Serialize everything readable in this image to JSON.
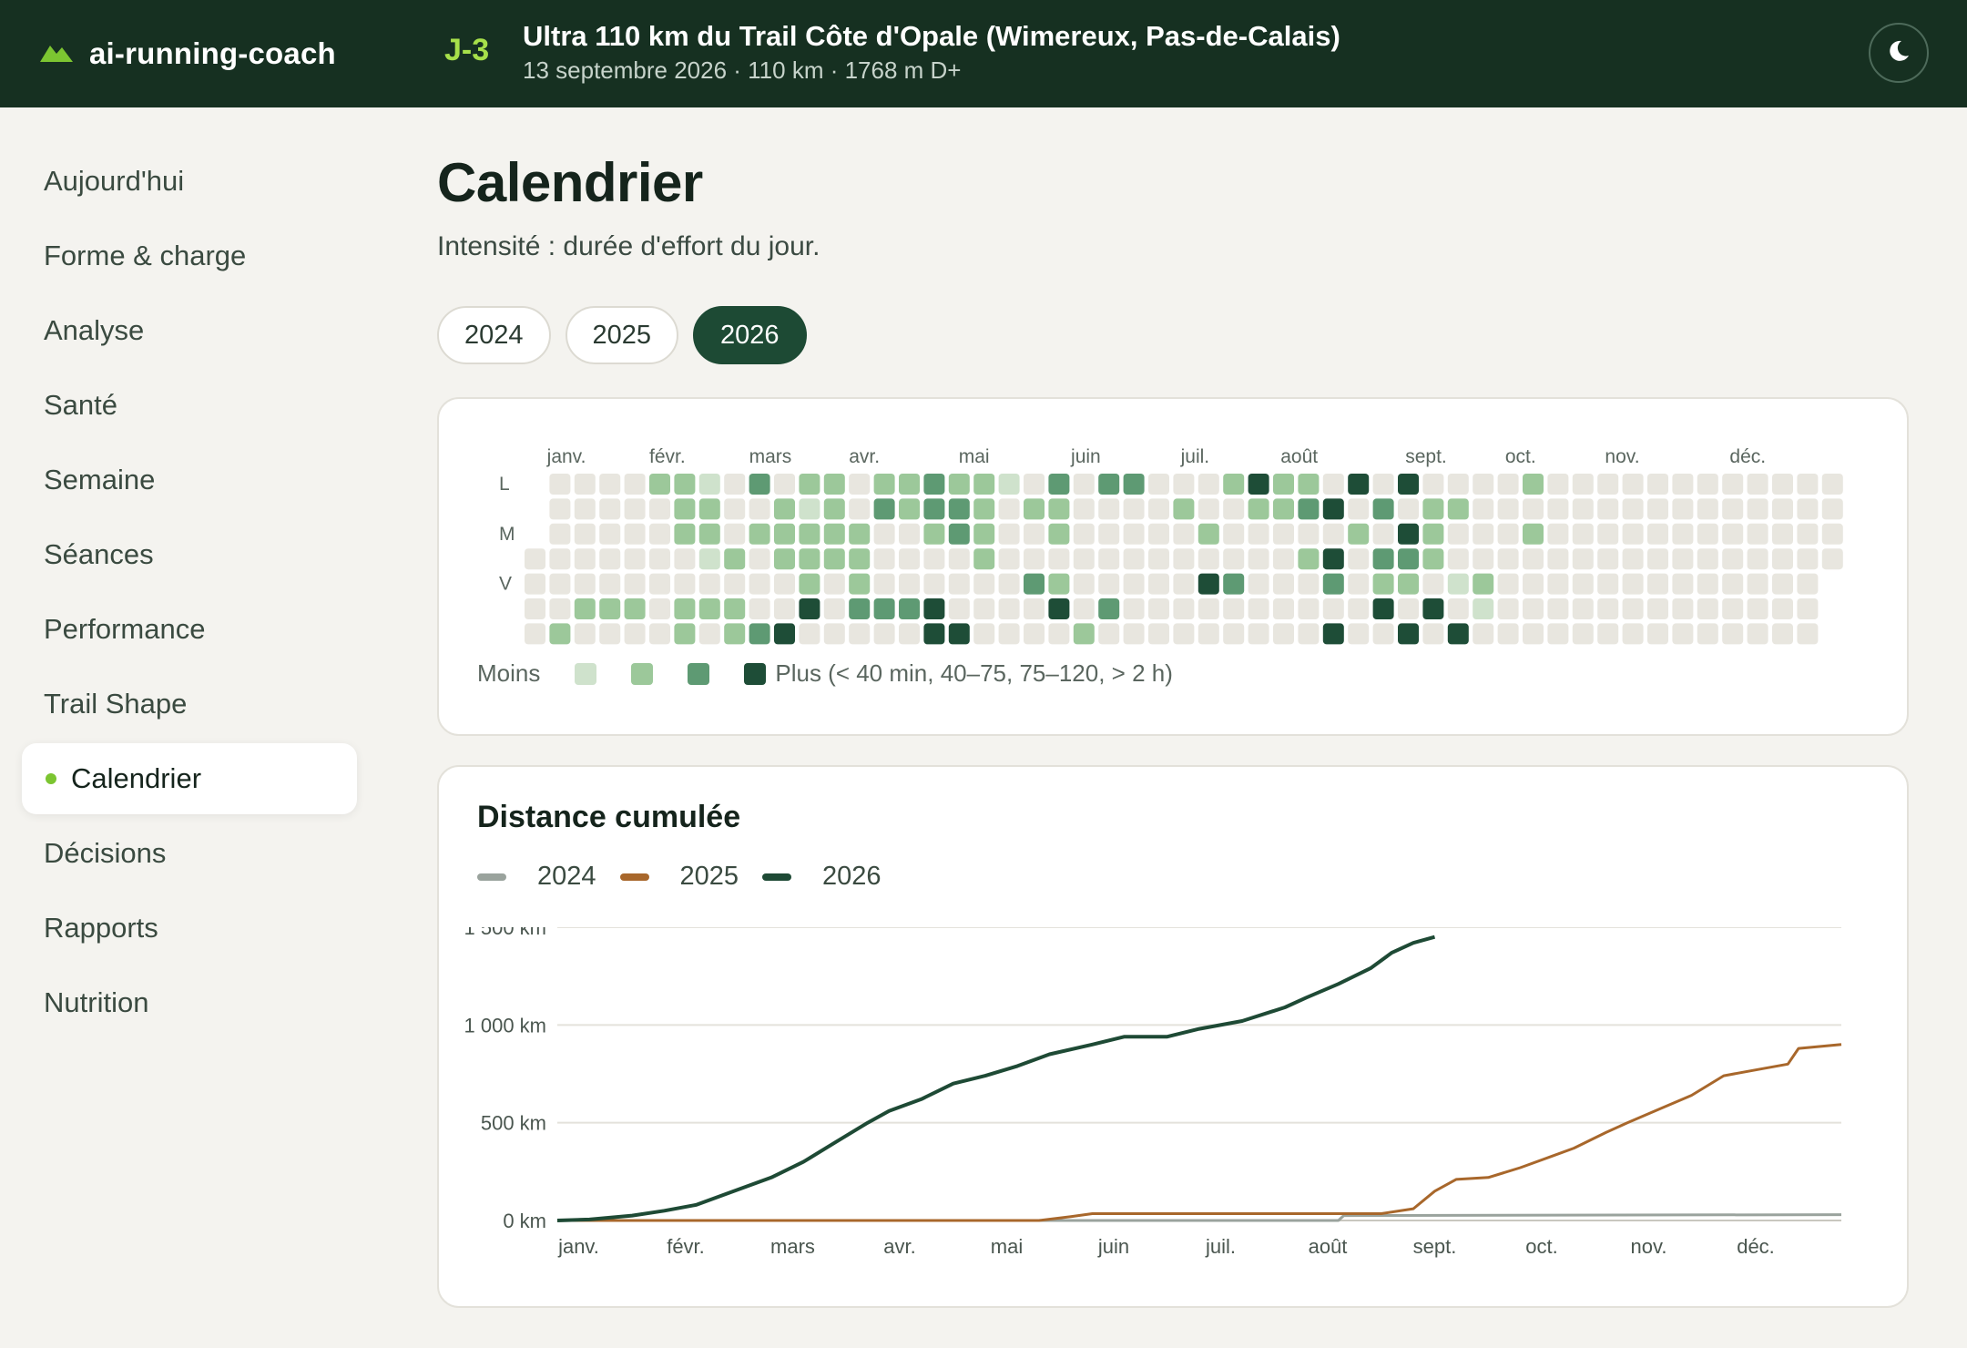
{
  "app": {
    "name": "ai-running-coach",
    "logo_icon": "mountain-icon"
  },
  "race": {
    "countdown": "J-3",
    "title": "Ultra 110 km du Trail Côte d'Opale (Wimereux, Pas-de-Calais)",
    "details": "13 septembre 2026 · 110 km · 1768 m D+"
  },
  "theme_toggle": {
    "icon": "moon-icon"
  },
  "sidebar": {
    "items": [
      {
        "label": "Aujourd'hui",
        "active": false
      },
      {
        "label": "Forme & charge",
        "active": false
      },
      {
        "label": "Analyse",
        "active": false
      },
      {
        "label": "Santé",
        "active": false
      },
      {
        "label": "Semaine",
        "active": false
      },
      {
        "label": "Séances",
        "active": false
      },
      {
        "label": "Performance",
        "active": false
      },
      {
        "label": "Trail Shape",
        "active": false
      },
      {
        "label": "Calendrier",
        "active": true
      },
      {
        "label": "Décisions",
        "active": false
      },
      {
        "label": "Rapports",
        "active": false
      },
      {
        "label": "Nutrition",
        "active": false
      }
    ]
  },
  "page": {
    "title": "Calendrier",
    "subtitle": "Intensité : durée d'effort du jour."
  },
  "year_tabs": [
    {
      "label": "2024",
      "active": false
    },
    {
      "label": "2025",
      "active": false
    },
    {
      "label": "2026",
      "active": true
    }
  ],
  "heatmap": {
    "months": [
      "janv.",
      "févr.",
      "mars",
      "avr.",
      "mai",
      "juin",
      "juil.",
      "août",
      "sept.",
      "oct.",
      "nov.",
      "déc."
    ],
    "day_labels": [
      "L",
      "",
      "M",
      "",
      "V",
      "",
      ""
    ],
    "legend": {
      "less": "Moins",
      "more": "Plus (< 40 min, 40–75, 75–120, > 2 h)"
    },
    "colors": [
      "#e8e6df",
      "#cfe2cc",
      "#9cc89a",
      "#5e9a73",
      "#1e4d37"
    ],
    "weeks": [
      [
        0,
        0,
        0,
        0,
        0,
        0,
        0
      ],
      [
        0,
        0,
        0,
        0,
        0,
        0,
        2
      ],
      [
        0,
        0,
        0,
        0,
        0,
        2,
        0
      ],
      [
        0,
        0,
        0,
        0,
        0,
        2,
        0
      ],
      [
        0,
        0,
        0,
        0,
        0,
        2,
        0
      ],
      [
        2,
        0,
        0,
        0,
        0,
        0,
        0
      ],
      [
        2,
        2,
        2,
        0,
        0,
        2,
        2
      ],
      [
        1,
        2,
        2,
        1,
        0,
        2,
        0
      ],
      [
        0,
        0,
        0,
        2,
        0,
        2,
        2
      ],
      [
        3,
        0,
        2,
        0,
        0,
        0,
        3
      ],
      [
        0,
        2,
        2,
        2,
        0,
        0,
        4
      ],
      [
        2,
        1,
        2,
        2,
        2,
        4,
        0
      ],
      [
        2,
        2,
        2,
        2,
        0,
        0,
        0
      ],
      [
        0,
        0,
        2,
        2,
        2,
        3,
        0
      ],
      [
        2,
        3,
        0,
        0,
        0,
        3,
        0
      ],
      [
        2,
        2,
        0,
        0,
        0,
        3,
        0
      ],
      [
        3,
        3,
        2,
        0,
        0,
        4,
        4
      ],
      [
        2,
        3,
        3,
        0,
        0,
        0,
        4
      ],
      [
        2,
        2,
        2,
        2,
        0,
        0,
        0
      ],
      [
        1,
        0,
        0,
        0,
        0,
        0,
        0
      ],
      [
        0,
        2,
        0,
        0,
        3,
        0,
        0
      ],
      [
        3,
        2,
        2,
        0,
        2,
        4,
        0
      ],
      [
        0,
        0,
        0,
        0,
        0,
        0,
        2
      ],
      [
        3,
        0,
        0,
        0,
        0,
        3,
        0
      ],
      [
        3,
        0,
        0,
        0,
        0,
        0,
        0
      ],
      [
        0,
        0,
        0,
        0,
        0,
        0,
        0
      ],
      [
        0,
        2,
        0,
        0,
        0,
        0,
        0
      ],
      [
        0,
        0,
        2,
        0,
        4,
        0,
        0
      ],
      [
        2,
        0,
        0,
        0,
        3,
        0,
        0
      ],
      [
        4,
        2,
        0,
        0,
        0,
        0,
        0
      ],
      [
        2,
        2,
        0,
        0,
        0,
        0,
        0
      ],
      [
        2,
        3,
        0,
        2,
        0,
        0,
        0
      ],
      [
        0,
        4,
        0,
        4,
        3,
        0,
        4
      ],
      [
        4,
        0,
        2,
        0,
        0,
        0,
        0
      ],
      [
        0,
        3,
        0,
        3,
        2,
        4,
        0
      ],
      [
        4,
        0,
        4,
        3,
        2,
        0,
        4
      ],
      [
        0,
        2,
        2,
        2,
        0,
        4,
        0
      ],
      [
        0,
        2,
        0,
        0,
        1,
        0,
        4
      ],
      [
        0,
        0,
        0,
        0,
        2,
        1,
        0
      ],
      [
        0,
        0,
        0,
        0,
        0,
        0,
        0
      ],
      [
        2,
        0,
        2,
        0,
        0,
        0,
        0
      ],
      [
        0,
        0,
        0,
        0,
        0,
        0,
        0
      ],
      [
        0,
        0,
        0,
        0,
        0,
        0,
        0
      ],
      [
        0,
        0,
        0,
        0,
        0,
        0,
        0
      ],
      [
        0,
        0,
        0,
        0,
        0,
        0,
        0
      ],
      [
        0,
        0,
        0,
        0,
        0,
        0,
        0
      ],
      [
        0,
        0,
        0,
        0,
        0,
        0,
        0
      ],
      [
        0,
        0,
        0,
        0,
        0,
        0,
        0
      ],
      [
        0,
        0,
        0,
        0,
        0,
        0,
        0
      ],
      [
        0,
        0,
        0,
        0,
        0,
        0,
        0
      ],
      [
        0,
        0,
        0,
        0,
        0,
        0,
        0
      ],
      [
        0,
        0,
        0,
        0,
        0,
        0,
        0
      ],
      [
        0,
        0,
        0,
        0,
        0,
        0,
        0
      ]
    ]
  },
  "chart": {
    "title": "Distance cumulée"
  },
  "chart_data": {
    "type": "line",
    "title": "Distance cumulée",
    "xlabel": "",
    "ylabel": "",
    "x_ticks": [
      "janv.",
      "févr.",
      "mars",
      "avr.",
      "mai",
      "juin",
      "juil.",
      "août",
      "sept.",
      "oct.",
      "nov.",
      "déc."
    ],
    "y_ticks": [
      "0 km",
      "500 km",
      "1 000 km",
      "1 500 km"
    ],
    "ylim": [
      0,
      1500
    ],
    "xlim": [
      0,
      12
    ],
    "grid": true,
    "legend_position": "top-left",
    "series": [
      {
        "name": "2024",
        "color": "#9aa39d",
        "points": [
          [
            0,
            0
          ],
          [
            7.3,
            0
          ],
          [
            7.35,
            25
          ],
          [
            12,
            30
          ]
        ]
      },
      {
        "name": "2025",
        "color": "#a8672b",
        "points": [
          [
            0,
            0
          ],
          [
            4.5,
            0
          ],
          [
            4.8,
            20
          ],
          [
            5.0,
            35
          ],
          [
            6.0,
            35
          ],
          [
            7.0,
            35
          ],
          [
            7.7,
            35
          ],
          [
            8.0,
            60
          ],
          [
            8.2,
            150
          ],
          [
            8.4,
            210
          ],
          [
            8.7,
            220
          ],
          [
            9.0,
            270
          ],
          [
            9.3,
            330
          ],
          [
            9.5,
            370
          ],
          [
            9.8,
            450
          ],
          [
            10.0,
            500
          ],
          [
            10.3,
            570
          ],
          [
            10.6,
            640
          ],
          [
            10.9,
            740
          ],
          [
            11.2,
            770
          ],
          [
            11.5,
            800
          ],
          [
            11.6,
            880
          ],
          [
            12,
            900
          ]
        ]
      },
      {
        "name": "2026",
        "color": "#1e4a35",
        "points": [
          [
            0,
            0
          ],
          [
            0.3,
            5
          ],
          [
            0.7,
            25
          ],
          [
            1.0,
            50
          ],
          [
            1.3,
            80
          ],
          [
            1.6,
            140
          ],
          [
            2.0,
            220
          ],
          [
            2.3,
            300
          ],
          [
            2.6,
            400
          ],
          [
            2.9,
            500
          ],
          [
            3.1,
            560
          ],
          [
            3.4,
            620
          ],
          [
            3.7,
            700
          ],
          [
            4.0,
            740
          ],
          [
            4.3,
            790
          ],
          [
            4.6,
            850
          ],
          [
            5.0,
            900
          ],
          [
            5.3,
            940
          ],
          [
            5.7,
            940
          ],
          [
            6.0,
            980
          ],
          [
            6.4,
            1020
          ],
          [
            6.8,
            1090
          ],
          [
            7.0,
            1140
          ],
          [
            7.3,
            1210
          ],
          [
            7.6,
            1290
          ],
          [
            7.8,
            1370
          ],
          [
            8.0,
            1420
          ],
          [
            8.2,
            1450
          ]
        ]
      }
    ]
  }
}
